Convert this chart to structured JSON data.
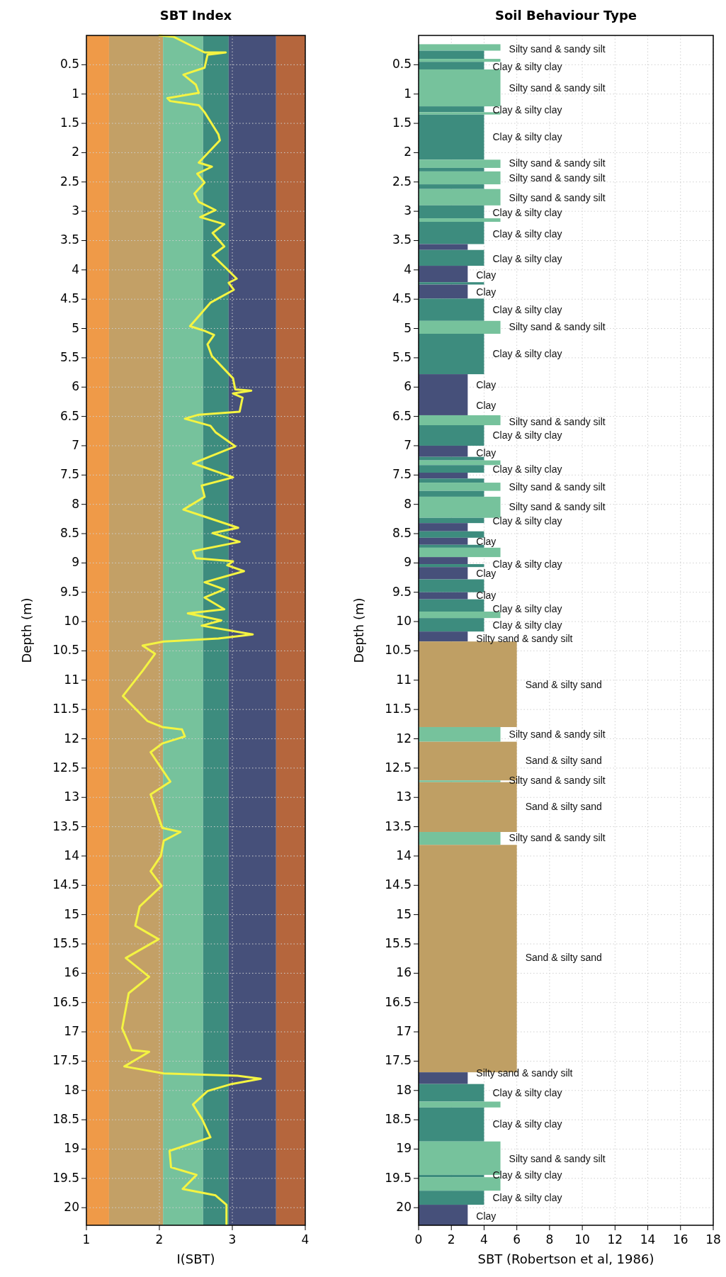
{
  "chart_data": [
    {
      "type": "line",
      "title": "SBT Index",
      "xlabel": "I(SBT)",
      "ylabel": "Depth (m)",
      "xlim": [
        1,
        4
      ],
      "ylim": [
        20.3,
        0
      ],
      "xticks": [
        1,
        2,
        3,
        4
      ],
      "yticks": [
        0.5,
        1,
        1.5,
        2,
        2.5,
        3,
        3.5,
        4,
        4.5,
        5,
        5.5,
        6,
        6.5,
        7,
        7.5,
        8,
        8.5,
        9,
        9.5,
        10,
        10.5,
        11,
        11.5,
        12,
        12.5,
        13,
        13.5,
        14,
        14.5,
        15,
        15.5,
        16,
        16.5,
        17,
        17.5,
        18,
        18.5,
        19,
        19.5,
        20
      ],
      "grid": true,
      "bands": [
        {
          "axis": "x",
          "from": 1,
          "to": 1.31,
          "color": "#ef9a48"
        },
        {
          "axis": "x",
          "from": 1.31,
          "to": 2.05,
          "color": "#c3a066"
        },
        {
          "axis": "x",
          "from": 2.05,
          "to": 2.6,
          "color": "#76c29c"
        },
        {
          "axis": "x",
          "from": 2.6,
          "to": 2.95,
          "color": "#3d8c7e"
        },
        {
          "axis": "x",
          "from": 2.95,
          "to": 3.6,
          "color": "#46507a"
        },
        {
          "axis": "x",
          "from": 3.6,
          "to": 4,
          "color": "#b5663d"
        }
      ],
      "series": [
        {
          "color": "#f4f442",
          "x": [
            2.0,
            2.19,
            2.62,
            2.91,
            2.66,
            2.62,
            2.33,
            2.5,
            2.54,
            2.11,
            2.15,
            2.54,
            2.62,
            2.81,
            2.83,
            2.54,
            2.72,
            2.52,
            2.62,
            2.48,
            2.54,
            2.77,
            2.56,
            2.89,
            2.73,
            2.89,
            2.73,
            2.93,
            3.06,
            2.95,
            3.02,
            2.7,
            2.42,
            2.62,
            2.75,
            2.66,
            2.72,
            3.01,
            3.04,
            3.26,
            3.01,
            3.14,
            3.1,
            2.54,
            2.35,
            2.7,
            2.77,
            3.04,
            2.46,
            3.01,
            2.58,
            2.62,
            2.33,
            2.62,
            3.08,
            2.73,
            3.1,
            2.46,
            2.5,
            3.01,
            2.93,
            3.16,
            2.62,
            2.89,
            2.62,
            2.89,
            2.39,
            2.85,
            2.58,
            3.28,
            2.81,
            2.06,
            1.77,
            1.94,
            1.77,
            1.5,
            1.84,
            2.04,
            2.31,
            2.35,
            2.04,
            1.88,
            2.15,
            1.88,
            2.04,
            2.29,
            2.06,
            2.02,
            1.88,
            2.03,
            1.73,
            1.67,
            1.99,
            1.54,
            1.86,
            1.58,
            1.49,
            1.62,
            1.86,
            1.52,
            2.06,
            3.07,
            3.39,
            2.99,
            2.66,
            2.46,
            2.59,
            2.7,
            2.14,
            2.16,
            2.51,
            2.32,
            2.77,
            2.92,
            2.92
          ],
          "values": [
            0.0,
            0.02,
            0.29,
            0.29,
            0.33,
            0.55,
            0.67,
            0.84,
            0.98,
            1.07,
            1.12,
            1.19,
            1.31,
            1.69,
            1.79,
            2.17,
            2.24,
            2.36,
            2.51,
            2.7,
            2.84,
            2.98,
            3.1,
            3.22,
            3.37,
            3.6,
            3.75,
            3.99,
            4.15,
            4.22,
            4.34,
            4.56,
            4.96,
            5.04,
            5.11,
            5.27,
            5.47,
            5.85,
            6.04,
            6.06,
            6.11,
            6.18,
            6.42,
            6.47,
            6.54,
            6.66,
            6.77,
            7.01,
            7.3,
            7.54,
            7.68,
            7.87,
            8.09,
            8.21,
            8.4,
            8.49,
            8.64,
            8.8,
            8.92,
            8.97,
            9.04,
            9.14,
            9.33,
            9.45,
            9.59,
            9.79,
            9.86,
            9.98,
            10.07,
            10.22,
            10.29,
            10.34,
            10.41,
            10.55,
            10.84,
            11.27,
            11.7,
            11.8,
            11.84,
            11.96,
            12.08,
            12.23,
            12.73,
            12.95,
            13.52,
            13.59,
            13.74,
            14.0,
            14.26,
            14.51,
            14.86,
            15.19,
            15.42,
            15.74,
            16.06,
            16.34,
            16.94,
            17.31,
            17.34,
            17.59,
            17.71,
            17.75,
            17.8,
            17.89,
            18.01,
            18.24,
            18.5,
            18.8,
            19.03,
            19.31,
            19.44,
            19.68,
            19.79,
            19.95,
            20.28
          ]
        }
      ]
    },
    {
      "type": "histogram",
      "orientation": "horizontal",
      "title": "Soil Behaviour Type",
      "xlabel": "SBT (Robertson et al, 1986)",
      "ylabel": "Depth (m)",
      "xlim": [
        0,
        18
      ],
      "ylim": [
        20.3,
        0
      ],
      "xticks": [
        0,
        2,
        4,
        6,
        8,
        10,
        12,
        14,
        16,
        18
      ],
      "yticks": [
        0.5,
        1,
        1.5,
        2,
        2.5,
        3,
        3.5,
        4,
        4.5,
        5,
        5.5,
        6,
        6.5,
        7,
        7.5,
        8,
        8.5,
        9,
        9.5,
        10,
        10.5,
        11,
        11.5,
        12,
        12.5,
        13,
        13.5,
        14,
        14.5,
        15,
        15.5,
        16,
        16.5,
        17,
        17.5,
        18,
        18.5,
        19,
        19.5,
        20
      ],
      "grid": true,
      "bins": [
        0.15,
        0.26,
        0.4,
        0.45,
        0.58,
        1.21,
        1.31,
        1.35,
        2.12,
        2.26,
        2.32,
        2.54,
        2.62,
        2.9,
        3.12,
        3.18,
        3.56,
        3.66,
        3.93,
        4.21,
        4.25,
        4.49,
        4.87,
        5.09,
        5.78,
        6.48,
        6.65,
        7.0,
        7.19,
        7.25,
        7.33,
        7.46,
        7.56,
        7.63,
        7.77,
        7.87,
        8.23,
        8.32,
        8.46,
        8.57,
        8.69,
        8.74,
        8.9,
        9.02,
        9.07,
        9.28,
        9.5,
        9.62,
        9.83,
        9.94,
        10.17,
        10.34,
        11.8,
        12.05,
        12.71,
        12.74,
        13.59,
        13.81,
        17.69,
        17.89,
        18.19,
        18.29,
        18.87,
        19.44,
        19.48,
        19.71,
        19.95,
        20.3
      ],
      "values": [
        5,
        4,
        5,
        4,
        5,
        4,
        5,
        4,
        5,
        4,
        5,
        4,
        5,
        4,
        5,
        4,
        3,
        4,
        3,
        4,
        3,
        4,
        5,
        4,
        3,
        5,
        4,
        3,
        4,
        5,
        4,
        3,
        4,
        5,
        4,
        5,
        4,
        3,
        4,
        3,
        4,
        5,
        3,
        4,
        3,
        4,
        3,
        4,
        5,
        4,
        3,
        6,
        5,
        6,
        5,
        6,
        5,
        6,
        3,
        4,
        5,
        4,
        5,
        4,
        5,
        4,
        3
      ],
      "colors": [
        "#76c29c",
        "#3d8c7e",
        "#76c29c",
        "#3d8c7e",
        "#76c29c",
        "#3d8c7e",
        "#76c29c",
        "#3d8c7e",
        "#76c29c",
        "#3d8c7e",
        "#76c29c",
        "#3d8c7e",
        "#76c29c",
        "#3d8c7e",
        "#76c29c",
        "#3d8c7e",
        "#46507a",
        "#3d8c7e",
        "#46507a",
        "#3d8c7e",
        "#46507a",
        "#3d8c7e",
        "#76c29c",
        "#3d8c7e",
        "#46507a",
        "#76c29c",
        "#3d8c7e",
        "#46507a",
        "#3d8c7e",
        "#76c29c",
        "#3d8c7e",
        "#46507a",
        "#3d8c7e",
        "#76c29c",
        "#3d8c7e",
        "#76c29c",
        "#3d8c7e",
        "#46507a",
        "#3d8c7e",
        "#46507a",
        "#3d8c7e",
        "#76c29c",
        "#46507a",
        "#3d8c7e",
        "#46507a",
        "#3d8c7e",
        "#46507a",
        "#3d8c7e",
        "#76c29c",
        "#3d8c7e",
        "#46507a",
        "#bf9f64",
        "#76c29c",
        "#bf9f64",
        "#76c29c",
        "#bf9f64",
        "#76c29c",
        "#bf9f64",
        "#46507a",
        "#3d8c7e",
        "#76c29c",
        "#3d8c7e",
        "#76c29c",
        "#3d8c7e",
        "#76c29c",
        "#3d8c7e",
        "#46507a"
      ],
      "annotations": [
        {
          "text": "Silty sand & sandy silt",
          "x": 5,
          "y": 0.24
        },
        {
          "text": "Clay & silty clay",
          "x": 4,
          "y": 0.55
        },
        {
          "text": "Silty sand & sandy silt",
          "x": 5,
          "y": 0.91
        },
        {
          "text": "Clay & silty clay",
          "x": 4,
          "y": 1.28
        },
        {
          "text": "Clay & silty clay",
          "x": 4,
          "y": 1.75
        },
        {
          "text": "Silty sand & sandy silt",
          "x": 5,
          "y": 2.19
        },
        {
          "text": "Silty sand & sandy silt",
          "x": 5,
          "y": 2.44
        },
        {
          "text": "Silty sand & sandy silt",
          "x": 5,
          "y": 2.79
        },
        {
          "text": "Clay & silty clay",
          "x": 4,
          "y": 3.04
        },
        {
          "text": "Clay & silty clay",
          "x": 4,
          "y": 3.4
        },
        {
          "text": "Clay & silty clay",
          "x": 4,
          "y": 3.82
        },
        {
          "text": "Clay",
          "x": 3,
          "y": 4.1
        },
        {
          "text": "Clay",
          "x": 3,
          "y": 4.39
        },
        {
          "text": "Clay & silty clay",
          "x": 4,
          "y": 4.69
        },
        {
          "text": "Silty sand & sandy silt",
          "x": 5,
          "y": 4.99
        },
        {
          "text": "Clay & silty clay",
          "x": 4,
          "y": 5.44
        },
        {
          "text": "Clay",
          "x": 3,
          "y": 5.98
        },
        {
          "text": "Clay",
          "x": 3,
          "y": 6.33
        },
        {
          "text": "Silty sand & sandy silt",
          "x": 5,
          "y": 6.6
        },
        {
          "text": "Clay & silty clay",
          "x": 4,
          "y": 6.84
        },
        {
          "text": "Clay",
          "x": 3,
          "y": 7.14
        },
        {
          "text": "Clay & silty clay",
          "x": 4,
          "y": 7.42
        },
        {
          "text": "Silty sand & sandy silt",
          "x": 5,
          "y": 7.72
        },
        {
          "text": "Silty sand & sandy silt",
          "x": 5,
          "y": 8.06
        },
        {
          "text": "Clay & silty clay",
          "x": 4,
          "y": 8.3
        },
        {
          "text": "Clay",
          "x": 3,
          "y": 8.65
        },
        {
          "text": "Clay & silty clay",
          "x": 4,
          "y": 9.04
        },
        {
          "text": "Clay",
          "x": 3,
          "y": 9.19
        },
        {
          "text": "Clay",
          "x": 3,
          "y": 9.57
        },
        {
          "text": "Clay & silty clay",
          "x": 4,
          "y": 9.8
        },
        {
          "text": "Clay & silty clay",
          "x": 4,
          "y": 10.08
        },
        {
          "text": "Silty sand & sandy silt",
          "x": 3,
          "y": 10.3
        },
        {
          "text": "Sand & silty sand",
          "x": 6,
          "y": 11.09
        },
        {
          "text": "Silty sand & sandy silt",
          "x": 5,
          "y": 11.94
        },
        {
          "text": "Sand & silty sand",
          "x": 6,
          "y": 12.38
        },
        {
          "text": "Silty sand & sandy silt",
          "x": 5,
          "y": 12.72
        },
        {
          "text": "Sand & silty sand",
          "x": 6,
          "y": 13.17
        },
        {
          "text": "Silty sand & sandy silt",
          "x": 5,
          "y": 13.7
        },
        {
          "text": "Sand & silty sand",
          "x": 6,
          "y": 15.75
        },
        {
          "text": "Silty sand & sandy silt",
          "x": 3,
          "y": 17.72
        },
        {
          "text": "Clay & silty clay",
          "x": 4,
          "y": 18.06
        },
        {
          "text": "Clay & silty clay",
          "x": 4,
          "y": 18.59
        },
        {
          "text": "Silty sand & sandy silt",
          "x": 5,
          "y": 19.18
        },
        {
          "text": "Clay & silty clay",
          "x": 4,
          "y": 19.46
        },
        {
          "text": "Clay & silty clay",
          "x": 4,
          "y": 19.85
        },
        {
          "text": "Clay",
          "x": 3,
          "y": 20.16
        }
      ]
    }
  ]
}
